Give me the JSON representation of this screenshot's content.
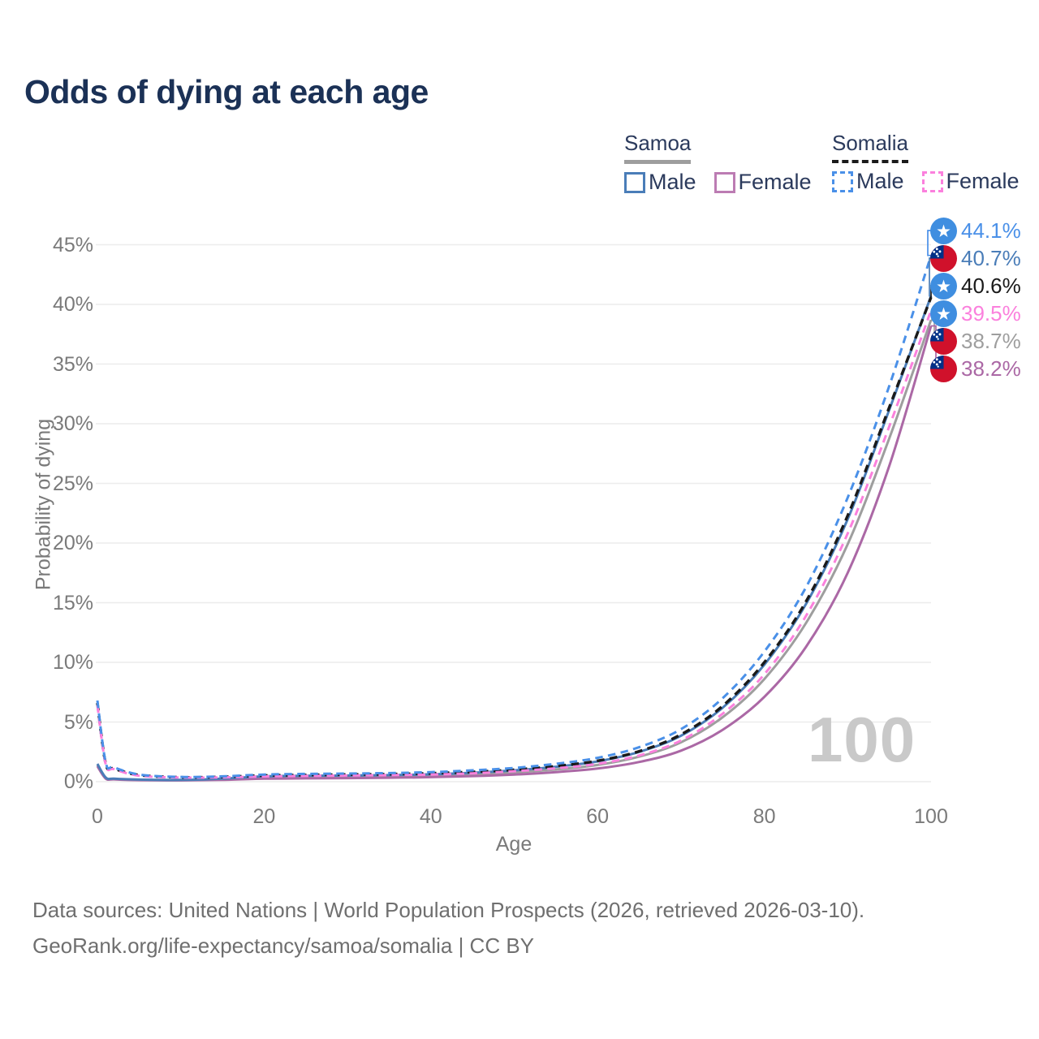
{
  "title": "Odds of dying at each age",
  "watermark": "100",
  "legend": {
    "groups": [
      {
        "label": "Samoa",
        "line_style": "solid",
        "underline_color": "#9e9e9e",
        "items": [
          {
            "label": "Male",
            "color": "#4a7db8"
          },
          {
            "label": "Female",
            "color": "#bc7cb3"
          }
        ]
      },
      {
        "label": "Somalia",
        "line_style": "dashed",
        "underline_color": "#1a1a1a",
        "items": [
          {
            "label": "Male",
            "color": "#4a90e8"
          },
          {
            "label": "Female",
            "color": "#fb80dd"
          }
        ]
      }
    ]
  },
  "axes": {
    "y_title": "Probability of dying",
    "x_title": "Age",
    "y_ticks": [
      "0%",
      "5%",
      "10%",
      "15%",
      "20%",
      "25%",
      "30%",
      "35%",
      "40%",
      "45%"
    ],
    "x_ticks": [
      "0",
      "20",
      "40",
      "60",
      "80",
      "100"
    ]
  },
  "end_labels": [
    {
      "value": "44.1%",
      "color": "#4a90e8",
      "flag": "somalia-flag-icon",
      "series": "Somalia Male"
    },
    {
      "value": "40.7%",
      "color": "#4a7db8",
      "flag": "samoa-flag-icon",
      "series": "Samoa Male"
    },
    {
      "value": "40.6%",
      "color": "#1a1a1a",
      "flag": "somalia-flag-icon",
      "series": "Somalia"
    },
    {
      "value": "39.5%",
      "color": "#fb80dd",
      "flag": "somalia-flag-icon",
      "series": "Somalia Female"
    },
    {
      "value": "38.7%",
      "color": "#9e9e9e",
      "flag": "samoa-flag-icon",
      "series": "Samoa"
    },
    {
      "value": "38.2%",
      "color": "#ab68a5",
      "flag": "samoa-flag-icon",
      "series": "Samoa Female"
    }
  ],
  "icons": {
    "somalia-flag-icon": {
      "circle": "#3f8ee0",
      "star": "#ffffff"
    },
    "samoa-flag-icon": {
      "red": "#d0112b",
      "canton": "#003087",
      "stars": "#ffffff"
    }
  },
  "footer": {
    "line1": "Data sources: United Nations | World Population Prospects (2026, retrieved 2026-03-10).",
    "line2": "GeoRank.org/life-expectancy/samoa/somalia | CC BY"
  },
  "chart_data": {
    "type": "line",
    "title": "Odds of dying at each age",
    "xlabel": "Age",
    "ylabel": "Probability of dying",
    "xlim": [
      0,
      100
    ],
    "ylim_pct": [
      0,
      47
    ],
    "grid": "horizontal",
    "legend_position": "top-right",
    "x": [
      0,
      1,
      2,
      5,
      10,
      15,
      20,
      25,
      30,
      35,
      40,
      45,
      50,
      55,
      60,
      65,
      70,
      75,
      80,
      85,
      90,
      95,
      100
    ],
    "series": [
      {
        "name": "Samoa",
        "color": "#9e9e9e",
        "dash": "solid",
        "end_value_pct": 38.7,
        "values_pct": [
          1.4,
          0.3,
          0.22,
          0.15,
          0.13,
          0.2,
          0.35,
          0.4,
          0.42,
          0.45,
          0.5,
          0.6,
          0.78,
          1.02,
          1.4,
          2.1,
          3.3,
          5.4,
          8.6,
          13.3,
          19.9,
          28.8,
          38.7
        ]
      },
      {
        "name": "Samoa Female",
        "color": "#ab68a5",
        "dash": "solid",
        "end_value_pct": 38.2,
        "values_pct": [
          1.3,
          0.25,
          0.2,
          0.13,
          0.11,
          0.15,
          0.25,
          0.28,
          0.3,
          0.33,
          0.38,
          0.47,
          0.6,
          0.8,
          1.1,
          1.65,
          2.6,
          4.35,
          7.1,
          11.3,
          17.5,
          26.5,
          38.2
        ]
      },
      {
        "name": "Samoa Male",
        "color": "#4a7db8",
        "dash": "solid",
        "end_value_pct": 40.7,
        "values_pct": [
          1.5,
          0.35,
          0.25,
          0.18,
          0.15,
          0.25,
          0.45,
          0.5,
          0.52,
          0.55,
          0.62,
          0.75,
          0.95,
          1.25,
          1.7,
          2.5,
          3.85,
          6.2,
          9.8,
          14.9,
          22.0,
          31.2,
          40.7
        ]
      },
      {
        "name": "Somalia",
        "color": "#1a1a1a",
        "dash": "dashed",
        "end_value_pct": 40.6,
        "values_pct": [
          6.6,
          1.5,
          1.1,
          0.55,
          0.37,
          0.4,
          0.52,
          0.56,
          0.6,
          0.63,
          0.7,
          0.82,
          1.0,
          1.3,
          1.75,
          2.55,
          3.95,
          6.35,
          10.0,
          15.1,
          22.3,
          31.4,
          40.6
        ]
      },
      {
        "name": "Somalia Female",
        "color": "#fb80dd",
        "dash": "dashed",
        "end_value_pct": 39.5,
        "values_pct": [
          6.4,
          1.45,
          1.05,
          0.5,
          0.35,
          0.36,
          0.44,
          0.48,
          0.52,
          0.55,
          0.6,
          0.7,
          0.88,
          1.12,
          1.5,
          2.2,
          3.45,
          5.7,
          9.0,
          13.9,
          20.8,
          29.8,
          39.5
        ]
      },
      {
        "name": "Somalia Male",
        "color": "#4a90e8",
        "dash": "dashed",
        "end_value_pct": 44.1,
        "values_pct": [
          6.8,
          1.6,
          1.2,
          0.6,
          0.4,
          0.45,
          0.6,
          0.65,
          0.68,
          0.72,
          0.8,
          0.95,
          1.15,
          1.5,
          2.0,
          2.9,
          4.4,
          7.0,
          10.9,
          16.3,
          23.8,
          33.2,
          44.1
        ]
      }
    ]
  }
}
